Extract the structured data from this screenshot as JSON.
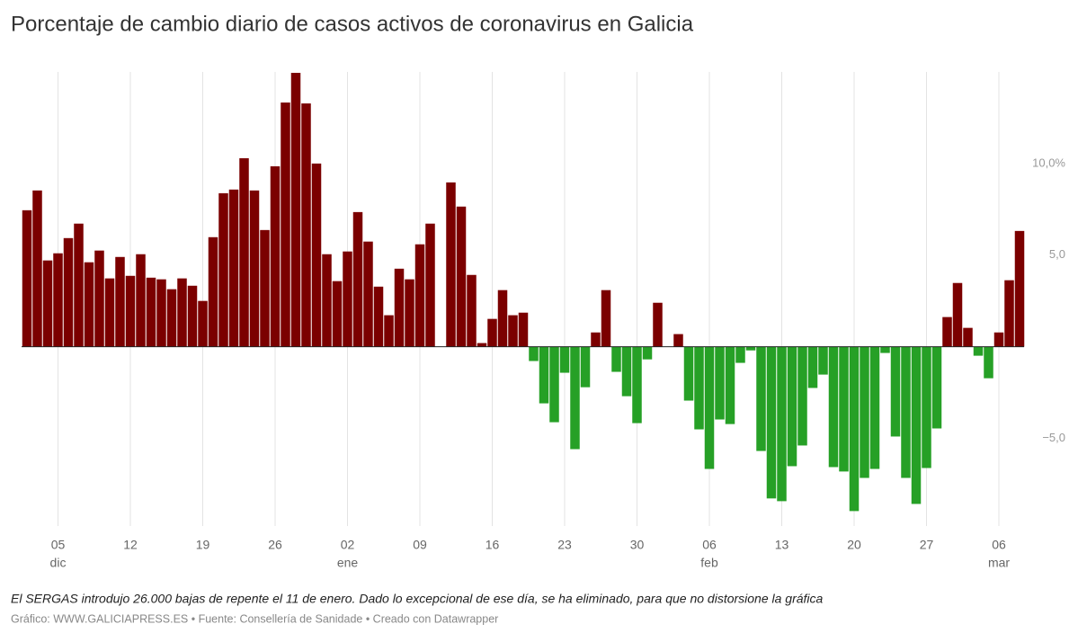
{
  "chart_data": {
    "type": "bar",
    "title": "Porcentaje de cambio diario de casos activos de coronavirus en Galicia",
    "note": "El SERGAS introdujo 26.000 bajas de repente el 11 de enero. Dado lo excepcional de ese día, se ha eliminado, para que no distorsione la gráfica",
    "source": "Gráfico: WWW.GALICIAPRESS.ES • Fuente: Consellería de Sanidade • Creado con Datawrapper",
    "categories": [
      null,
      null,
      null,
      "05",
      null,
      null,
      null,
      null,
      null,
      null,
      "12",
      null,
      null,
      null,
      null,
      null,
      null,
      "19",
      null,
      null,
      null,
      null,
      null,
      null,
      "26",
      null,
      null,
      null,
      null,
      null,
      null,
      "02",
      null,
      null,
      null,
      null,
      null,
      null,
      "09",
      null,
      null,
      null,
      null,
      null,
      null,
      "16",
      null,
      null,
      null,
      null,
      null,
      null,
      "23",
      null,
      null,
      null,
      null,
      null,
      null,
      "30",
      null,
      null,
      null,
      null,
      null,
      null,
      "06",
      null,
      null,
      null,
      null,
      null,
      null,
      "13",
      null,
      null,
      null,
      null,
      null,
      null,
      "20",
      null,
      null,
      null,
      null,
      null,
      null,
      "27",
      null,
      null,
      null,
      null,
      null,
      null,
      "06",
      null,
      null
    ],
    "month_labels": [
      null,
      null,
      null,
      "dic",
      null,
      null,
      null,
      null,
      null,
      null,
      null,
      null,
      null,
      null,
      null,
      null,
      null,
      null,
      null,
      null,
      null,
      null,
      null,
      null,
      null,
      null,
      null,
      null,
      null,
      null,
      null,
      "ene",
      null,
      null,
      null,
      null,
      null,
      null,
      null,
      null,
      null,
      null,
      null,
      null,
      null,
      null,
      null,
      null,
      null,
      null,
      null,
      null,
      null,
      null,
      null,
      null,
      null,
      null,
      null,
      null,
      null,
      null,
      null,
      null,
      null,
      null,
      "feb",
      null,
      null,
      null,
      null,
      null,
      null,
      null,
      null,
      null,
      null,
      null,
      null,
      null,
      null,
      null,
      null,
      null,
      null,
      null,
      null,
      null,
      null,
      null,
      null,
      null,
      null,
      null,
      "mar",
      null,
      null
    ],
    "values": [
      7.45,
      8.53,
      4.71,
      5.1,
      5.93,
      6.72,
      4.61,
      5.25,
      3.73,
      4.9,
      3.87,
      5.05,
      3.77,
      3.68,
      3.14,
      3.73,
      3.33,
      2.5,
      5.98,
      8.38,
      8.58,
      10.29,
      8.53,
      6.37,
      9.85,
      13.33,
      14.95,
      13.28,
      10.0,
      5.05,
      3.58,
      5.2,
      7.35,
      5.74,
      3.28,
      1.72,
      4.26,
      3.68,
      5.59,
      6.72,
      null,
      8.97,
      7.65,
      3.92,
      0.2,
      1.52,
      3.09,
      1.72,
      1.86,
      -0.78,
      -3.09,
      -4.12,
      -1.42,
      -5.59,
      -2.21,
      0.78,
      3.09,
      -1.37,
      -2.7,
      -4.17,
      -0.69,
      2.4,
      0,
      0.69,
      -2.94,
      -4.51,
      -6.67,
      -3.97,
      -4.22,
      -0.88,
      -0.2,
      -5.69,
      -8.28,
      -8.43,
      -6.52,
      -5.39,
      -2.25,
      -1.52,
      -6.57,
      -6.81,
      -8.97,
      -7.16,
      -6.67,
      -0.34,
      -4.9,
      -7.16,
      -8.58,
      -6.62,
      -4.46,
      1.62,
      3.48,
      1.03,
      -0.49,
      -1.72,
      0.78,
      3.63,
      6.32
    ],
    "positive_color": "#7b0000",
    "negative_color": "#26a026",
    "ylim": [
      -9,
      15
    ],
    "yticks": [
      {
        "value": 10,
        "label": "10,0%"
      },
      {
        "value": 5,
        "label": "5,0"
      },
      {
        "value": -5,
        "label": "−5,0"
      }
    ],
    "grid": true
  }
}
